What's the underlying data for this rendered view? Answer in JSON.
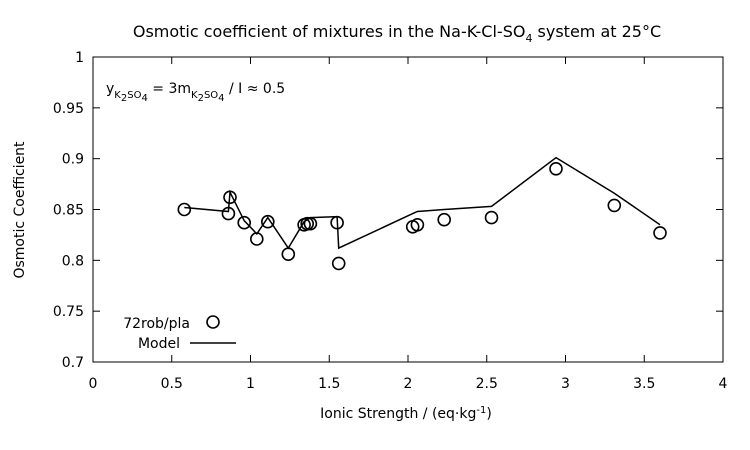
{
  "chart_data": {
    "type": "scatter",
    "title": {
      "main": "Osmotic coefficient of mixtures in the Na-K-Cl-SO",
      "sub": "4",
      "end": " system at 25°C"
    },
    "xlabel": {
      "main": "Ionic Strength / (eq·kg",
      "sup": "-1",
      "end": ")"
    },
    "ylabel": "Osmotic Coefficient",
    "annotation": {
      "y": "y",
      "k2so4": "K",
      "two": "2",
      "so": "SO",
      "four": "4",
      "eq": " = 3m",
      "rest": " / I ≈ 0.5"
    },
    "xlim": [
      0,
      4
    ],
    "ylim": [
      0.7,
      1.0
    ],
    "xticks": [
      {
        "v": 0,
        "label": "0"
      },
      {
        "v": 0.5,
        "label": "0.5"
      },
      {
        "v": 1,
        "label": "1"
      },
      {
        "v": 1.5,
        "label": "1.5"
      },
      {
        "v": 2,
        "label": "2"
      },
      {
        "v": 2.5,
        "label": "2.5"
      },
      {
        "v": 3,
        "label": "3"
      },
      {
        "v": 3.5,
        "label": "3.5"
      },
      {
        "v": 4,
        "label": "4"
      }
    ],
    "yticks": [
      {
        "v": 0.7,
        "label": "0.7"
      },
      {
        "v": 0.75,
        "label": "0.75"
      },
      {
        "v": 0.8,
        "label": "0.8"
      },
      {
        "v": 0.85,
        "label": "0.85"
      },
      {
        "v": 0.9,
        "label": "0.9"
      },
      {
        "v": 0.95,
        "label": "0.95"
      },
      {
        "v": 1,
        "label": "1"
      }
    ],
    "legend": {
      "placement": "bottom-left",
      "entries": [
        {
          "name": "72rob/pla",
          "symbol": "circle"
        },
        {
          "name": "Model",
          "symbol": "line"
        }
      ]
    },
    "series": [
      {
        "name": "72rob/pla",
        "style": "points",
        "x": [
          0.58,
          0.86,
          0.87,
          0.96,
          1.04,
          1.11,
          1.24,
          1.34,
          1.36,
          1.38,
          1.55,
          1.56,
          2.03,
          2.06,
          2.23,
          2.53,
          2.94,
          3.31,
          3.6
        ],
        "y": [
          0.85,
          0.846,
          0.862,
          0.837,
          0.821,
          0.838,
          0.806,
          0.835,
          0.836,
          0.836,
          0.837,
          0.797,
          0.833,
          0.835,
          0.84,
          0.842,
          0.89,
          0.854,
          0.827
        ]
      },
      {
        "name": "Model",
        "style": "line",
        "x": [
          0.58,
          0.86,
          0.87,
          0.96,
          1.04,
          1.11,
          1.24,
          1.34,
          1.36,
          1.38,
          1.55,
          1.56,
          2.03,
          2.06,
          2.23,
          2.53,
          2.94,
          3.31,
          3.6
        ],
        "y": [
          0.852,
          0.848,
          0.867,
          0.839,
          0.826,
          0.842,
          0.812,
          0.838,
          0.84,
          0.842,
          0.843,
          0.812,
          0.846,
          0.848,
          0.85,
          0.853,
          0.901,
          0.866,
          0.835
        ]
      }
    ]
  }
}
